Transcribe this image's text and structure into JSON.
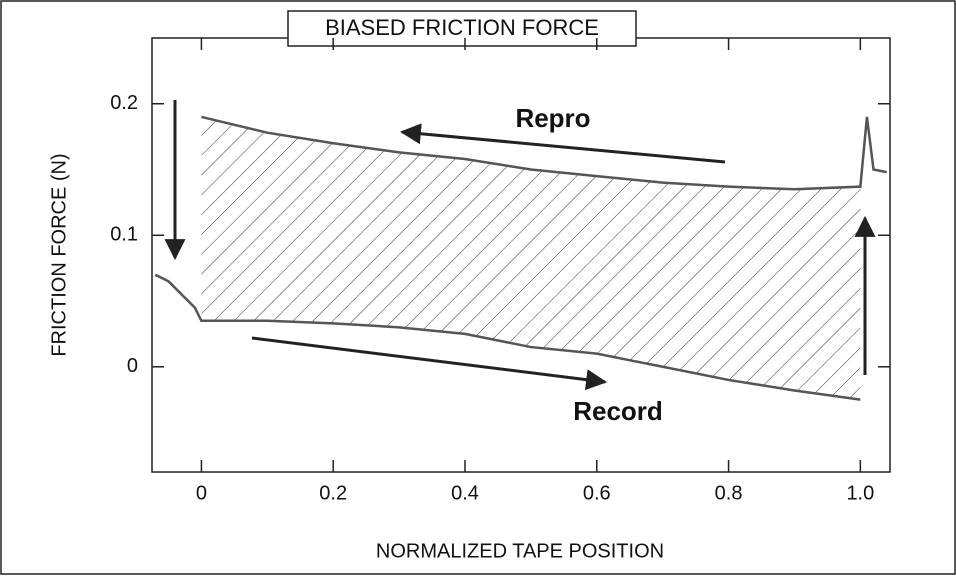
{
  "chart_data": {
    "type": "line",
    "title": "BIASED FRICTION FORCE",
    "x_label": "NORMALIZED TAPE POSITION",
    "y_label": "FRICTION FORCE (N)",
    "x": [
      -0.07,
      -0.05,
      -0.03,
      -0.01,
      0,
      0.1,
      0.2,
      0.3,
      0.4,
      0.5,
      0.6,
      0.7,
      0.8,
      0.9,
      1.0,
      1.01,
      1.02,
      1.04
    ],
    "series": [
      {
        "name": "Repro",
        "color": "#555555",
        "values": [
          null,
          null,
          null,
          null,
          0.19,
          0.178,
          0.17,
          0.163,
          0.158,
          0.15,
          0.145,
          0.14,
          0.137,
          0.135,
          0.137,
          0.19,
          0.15,
          0.148
        ]
      },
      {
        "name": "Record",
        "color": "#555555",
        "values": [
          0.07,
          0.065,
          0.055,
          0.045,
          0.035,
          0.035,
          0.033,
          0.03,
          0.025,
          0.015,
          0.01,
          0.0,
          -0.01,
          -0.018,
          -0.025,
          null,
          null,
          null
        ]
      }
    ],
    "xlim": [
      -0.075,
      1.045
    ],
    "ylim": [
      -0.08,
      0.25
    ],
    "xticks": [
      0,
      0.2,
      0.4,
      0.6,
      0.8,
      {
        "value": 1,
        "label": "1.0"
      }
    ],
    "yticks": [
      0,
      0.1,
      0.2
    ]
  }
}
